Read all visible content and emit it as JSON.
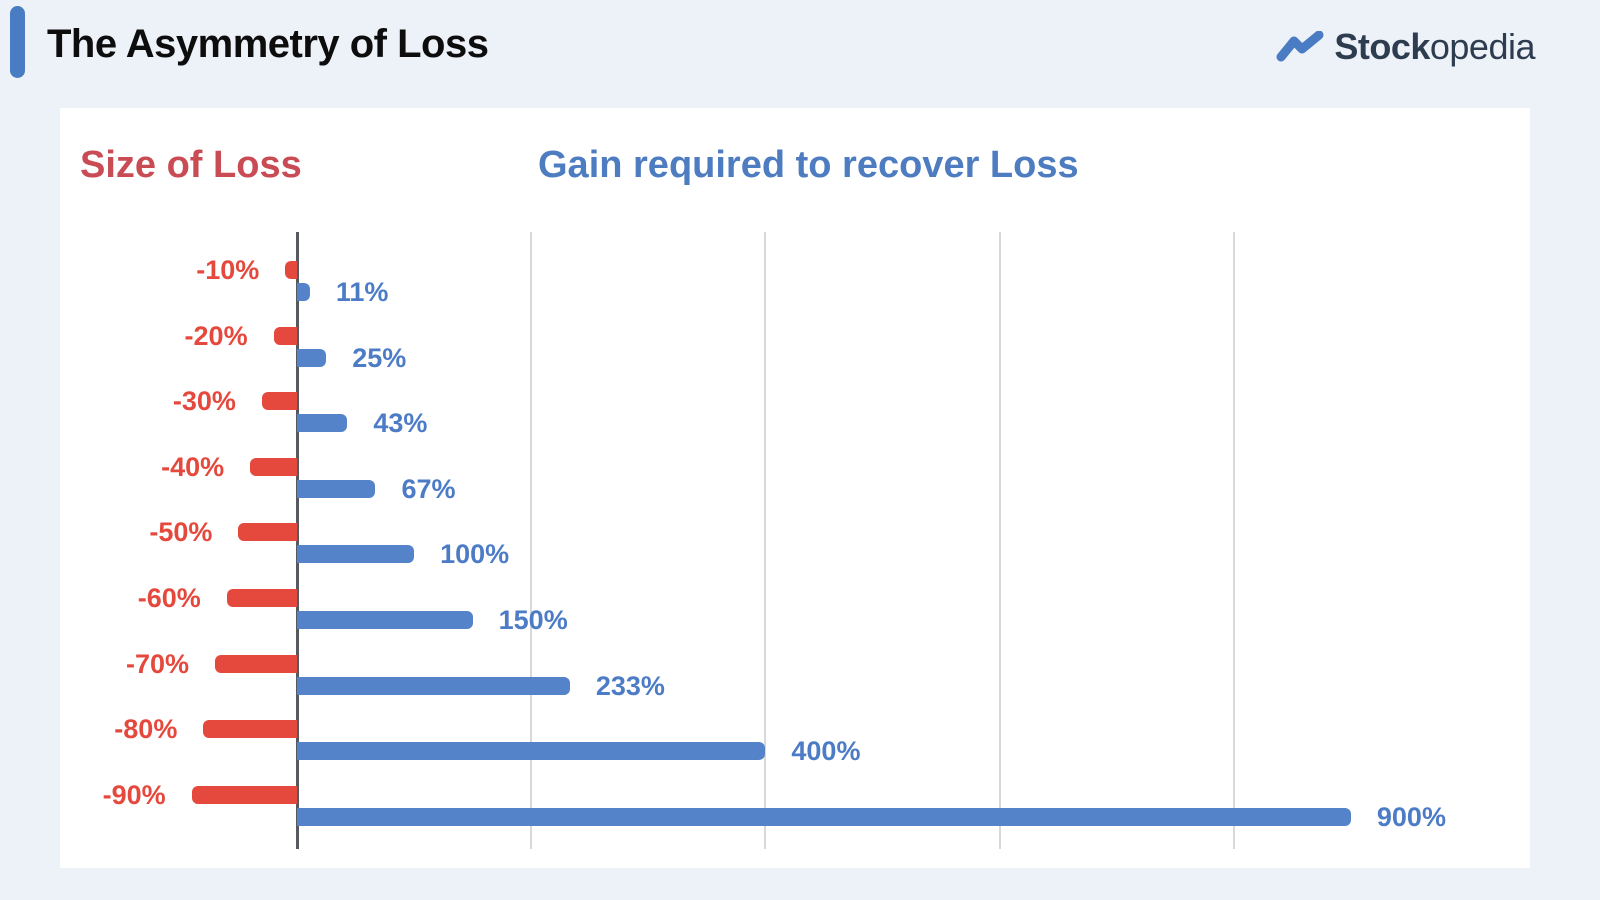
{
  "header": {
    "title": "The Asymmetry of Loss",
    "logo": {
      "bold": "Stock",
      "regular": "opedia"
    }
  },
  "page": {
    "background": "#edf1f8",
    "card_background": "#ffffff",
    "accent_bar_color": "#4a7cc4",
    "title_color": "#0d0d0d",
    "logo_text_color": "#2e3c50",
    "logo_icon_color": "#4a7cc4"
  },
  "chart_data": {
    "type": "bar",
    "orientation": "horizontal",
    "diverging": true,
    "left_header": "Size of Loss",
    "right_header": "Gain required to recover Loss",
    "rows": [
      {
        "loss": -10,
        "loss_label": "-10%",
        "gain": 11,
        "gain_label": "11%"
      },
      {
        "loss": -20,
        "loss_label": "-20%",
        "gain": 25,
        "gain_label": "25%"
      },
      {
        "loss": -30,
        "loss_label": "-30%",
        "gain": 43,
        "gain_label": "43%"
      },
      {
        "loss": -40,
        "loss_label": "-40%",
        "gain": 67,
        "gain_label": "67%"
      },
      {
        "loss": -50,
        "loss_label": "-50%",
        "gain": 100,
        "gain_label": "100%"
      },
      {
        "loss": -60,
        "loss_label": "-60%",
        "gain": 150,
        "gain_label": "150%"
      },
      {
        "loss": -70,
        "loss_label": "-70%",
        "gain": 233,
        "gain_label": "233%"
      },
      {
        "loss": -80,
        "loss_label": "-80%",
        "gain": 400,
        "gain_label": "400%"
      },
      {
        "loss": -90,
        "loss_label": "-90%",
        "gain": 900,
        "gain_label": "900%"
      }
    ],
    "x_axis": {
      "unit": "%",
      "axis_at": 0,
      "gridlines": [
        200,
        400,
        600,
        800
      ],
      "tick_labels_visible": false,
      "xlim": [
        -120,
        1060
      ],
      "grid": true
    },
    "legend": "none",
    "colors": {
      "loss_bar": "#e5493d",
      "gain_bar": "#5483c9",
      "loss_value_text": "#e5493d",
      "gain_value_text": "#4d7cc7",
      "left_header_text": "#c94b53",
      "right_header_text": "#4d7cc0",
      "gridline": "#d8d8d8",
      "axis": "#565a5e"
    }
  }
}
